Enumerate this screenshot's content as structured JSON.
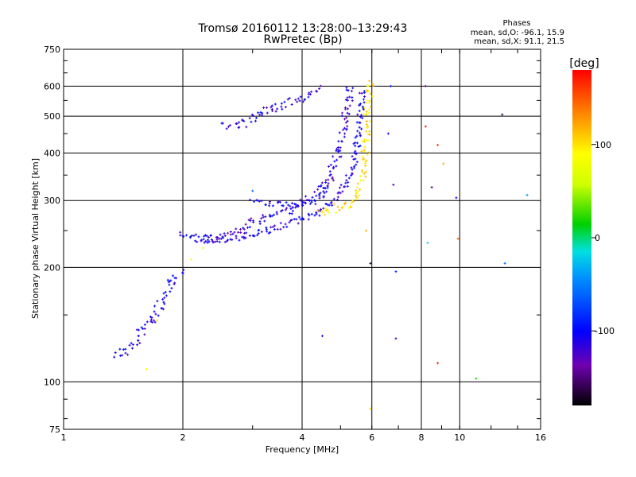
{
  "header": {
    "title": "Tromsø 20160112 13:28:00–13:29:43",
    "subtitle": "RwPretec (Bp)"
  },
  "phases_box": {
    "title": "Phases",
    "line_o": "mean, sd,O: -96.1, 15.9",
    "line_x": "mean, sd,X:  91.1, 21.5"
  },
  "colorbar": {
    "unit": "deg",
    "ticks": [
      "100",
      "0",
      "-100"
    ],
    "tick_values": [
      100,
      0,
      -100
    ],
    "range": [
      -180,
      180
    ]
  },
  "chart_data": {
    "type": "scatter",
    "title": "Tromsø 20160112 13:28:00–13:29:43",
    "subtitle": "RwPretec (Bp)",
    "xlabel": "Frequency [MHz]",
    "ylabel": "Stationary phase Virtual Height [km]",
    "xscale": "log",
    "yscale": "log",
    "xlim": [
      1,
      16
    ],
    "ylim": [
      75,
      750
    ],
    "xticks": [
      1,
      2,
      4,
      6,
      8,
      10,
      16
    ],
    "xtick_labels": [
      "1",
      "2",
      "4",
      "6",
      "8",
      "10",
      "16"
    ],
    "yticks": [
      75,
      100,
      200,
      300,
      400,
      500,
      600,
      750
    ],
    "ytick_labels": [
      "75",
      "100",
      "200",
      "300",
      "400",
      "500",
      "600",
      "750"
    ],
    "grid": true,
    "color_encoding": "phase (deg)",
    "traces": [
      {
        "name": "",
        "phase": -110,
        "spread": 6,
        "points": [
          [
            1.34,
            118
          ],
          [
            1.45,
            121
          ],
          [
            1.55,
            130
          ],
          [
            1.6,
            141
          ],
          [
            1.7,
            150
          ],
          [
            1.8,
            165
          ],
          [
            1.88,
            183
          ],
          [
            1.95,
            190
          ],
          [
            2.0,
            196
          ]
        ]
      },
      {
        "name": "",
        "phase": -110,
        "spread": 4,
        "points": [
          [
            1.95,
            243
          ],
          [
            2.1,
            240
          ],
          [
            2.4,
            236
          ],
          [
            2.7,
            238
          ],
          [
            3.0,
            244
          ],
          [
            3.3,
            250
          ],
          [
            3.6,
            258
          ],
          [
            4.0,
            268
          ],
          [
            4.4,
            280
          ],
          [
            4.8,
            300
          ],
          [
            5.1,
            325
          ],
          [
            5.35,
            360
          ],
          [
            5.5,
            420
          ],
          [
            5.6,
            500
          ],
          [
            5.7,
            590
          ]
        ]
      },
      {
        "name": "",
        "phase": -115,
        "spread": 5,
        "points": [
          [
            2.2,
            235
          ],
          [
            2.5,
            240
          ],
          [
            2.8,
            253
          ],
          [
            3.1,
            265
          ],
          [
            3.4,
            275
          ],
          [
            3.8,
            285
          ],
          [
            4.1,
            300
          ],
          [
            4.4,
            320
          ],
          [
            4.7,
            350
          ],
          [
            4.9,
            390
          ],
          [
            5.05,
            440
          ],
          [
            5.15,
            500
          ],
          [
            5.25,
            560
          ],
          [
            5.3,
            610
          ]
        ]
      },
      {
        "name": "",
        "phase": -105,
        "spread": 4,
        "points": [
          [
            3.0,
            300
          ],
          [
            3.4,
            295
          ],
          [
            3.8,
            290
          ],
          [
            4.2,
            295
          ],
          [
            4.5,
            310
          ],
          [
            4.8,
            340
          ]
        ]
      },
      {
        "name": "",
        "phase": 100,
        "spread": 5,
        "points": [
          [
            4.4,
            275
          ],
          [
            4.8,
            285
          ],
          [
            5.1,
            290
          ],
          [
            5.4,
            295
          ],
          [
            5.6,
            320
          ],
          [
            5.7,
            360
          ],
          [
            5.8,
            420
          ],
          [
            5.85,
            480
          ],
          [
            5.9,
            560
          ],
          [
            5.95,
            620
          ]
        ]
      },
      {
        "name": "",
        "phase": -110,
        "spread": 5,
        "points": [
          [
            2.55,
            470
          ],
          [
            2.9,
            480
          ],
          [
            3.2,
            520
          ],
          [
            3.5,
            530
          ],
          [
            3.9,
            550
          ],
          [
            4.1,
            565
          ],
          [
            4.4,
            600
          ]
        ]
      }
    ],
    "isolated_points": [
      [
        1.62,
        108,
        80
      ],
      [
        1.72,
        145,
        100
      ],
      [
        2.1,
        210,
        90
      ],
      [
        2.25,
        225,
        85
      ],
      [
        3.0,
        318,
        -60
      ],
      [
        4.5,
        132,
        -120
      ],
      [
        5.8,
        250,
        120
      ],
      [
        5.95,
        205,
        -170
      ],
      [
        5.95,
        85,
        110
      ],
      [
        6.6,
        450,
        -110
      ],
      [
        6.8,
        330,
        -130
      ],
      [
        6.9,
        195,
        -80
      ],
      [
        6.9,
        130,
        -120
      ],
      [
        6.7,
        600,
        -90
      ],
      [
        8.2,
        470,
        170
      ],
      [
        8.2,
        600,
        -140
      ],
      [
        8.3,
        232,
        -20
      ],
      [
        8.5,
        325,
        -150
      ],
      [
        8.8,
        420,
        160
      ],
      [
        8.8,
        112,
        170
      ],
      [
        9.1,
        375,
        120
      ],
      [
        9.8,
        305,
        -120
      ],
      [
        9.9,
        238,
        150
      ],
      [
        11.0,
        102,
        20
      ],
      [
        12.8,
        505,
        -160
      ],
      [
        13.0,
        205,
        -60
      ],
      [
        14.8,
        310,
        -40
      ]
    ]
  }
}
